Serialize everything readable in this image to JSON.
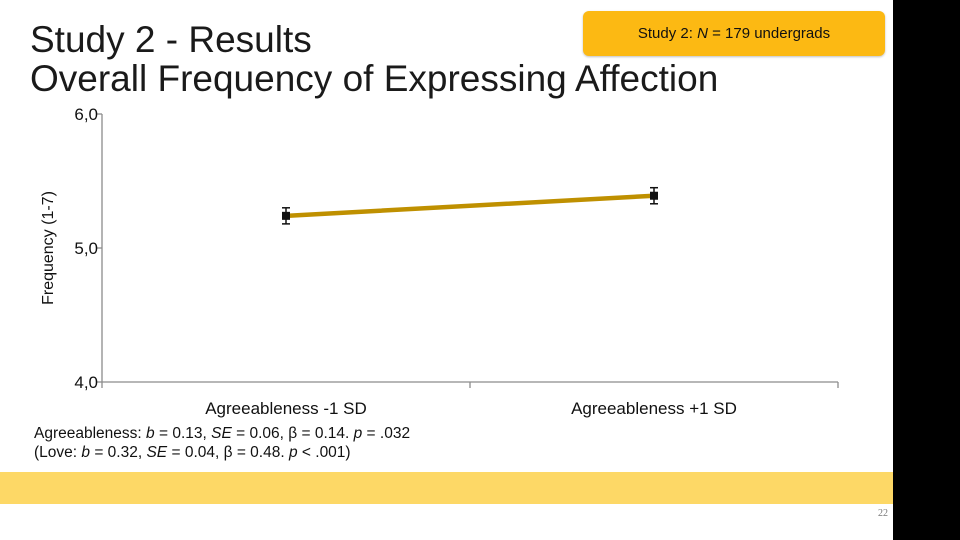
{
  "slide": {
    "title_line1": "Study 2 - Results",
    "title_line2": "Overall Frequency of Expressing Affection",
    "badge": {
      "pre": "Study 2: ",
      "italic": "N",
      "post": " = 179 undergrads"
    },
    "stats": {
      "line1": [
        "Agreeableness: ",
        {
          "i": "b"
        },
        " = 0.13, ",
        {
          "i": "SE"
        },
        " = 0.06, β = 0.14.  ",
        {
          "i": "p"
        },
        " = .032"
      ],
      "line2": [
        "(Love: ",
        {
          "i": "b"
        },
        " = 0.32, ",
        {
          "i": "SE"
        },
        " = 0.04, β = 0.48.  ",
        {
          "i": "p"
        },
        " < .001)"
      ]
    },
    "page_number": "22",
    "colors": {
      "line": "#bf9000",
      "accent": "#fcb913",
      "band": "#fdd866",
      "marker": "#111111",
      "rightbar": "#000000"
    }
  },
  "chart_data": {
    "type": "line",
    "categories": [
      "Agreeableness -1 SD",
      "Agreeableness +1 SD"
    ],
    "series": [
      {
        "values": [
          5.24,
          5.39
        ],
        "error": [
          0.06,
          0.06
        ]
      }
    ],
    "ylabel": "Frequency (1-7)",
    "ylim": [
      4.0,
      6.0
    ],
    "yticks": [
      4.0,
      5.0,
      6.0
    ],
    "ytick_labels": [
      "4,0",
      "5,0",
      "6,0"
    ],
    "grid": false,
    "legend": "none"
  }
}
